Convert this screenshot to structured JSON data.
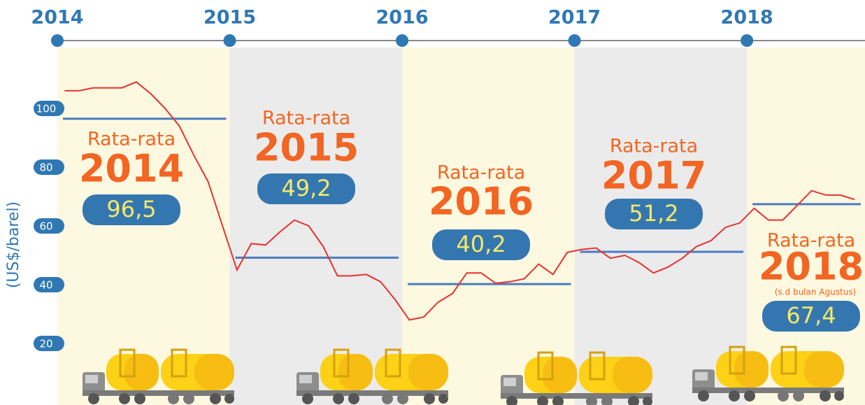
{
  "chart_data": {
    "type": "line",
    "y_label": "(US$/barel)",
    "xlim": [
      2014,
      2018.685
    ],
    "xticks": [
      2014,
      2015,
      2016,
      2017,
      2018
    ],
    "ylim": [
      0,
      120
    ],
    "yticks": [
      20,
      40,
      60,
      80,
      100
    ],
    "grid": false,
    "x": [
      2014.042,
      2014.125,
      2014.208,
      2014.292,
      2014.375,
      2014.458,
      2014.542,
      2014.625,
      2014.708,
      2014.792,
      2014.875,
      2014.958,
      2015.042,
      2015.125,
      2015.208,
      2015.292,
      2015.375,
      2015.458,
      2015.542,
      2015.625,
      2015.708,
      2015.792,
      2015.875,
      2015.958,
      2016.042,
      2016.125,
      2016.208,
      2016.292,
      2016.375,
      2016.458,
      2016.542,
      2016.625,
      2016.708,
      2016.792,
      2016.875,
      2016.958,
      2017.042,
      2017.125,
      2017.208,
      2017.292,
      2017.375,
      2017.458,
      2017.542,
      2017.625,
      2017.708,
      2017.792,
      2017.875,
      2017.958,
      2018.042,
      2018.125,
      2018.208,
      2018.292,
      2018.375,
      2018.458,
      2018.542,
      2018.625
    ],
    "series": [
      {
        "color": "#e8312f",
        "values": [
          106,
          106,
          107,
          107,
          107,
          109,
          105,
          100,
          94,
          84,
          75,
          60,
          45,
          54,
          53.5,
          58,
          62,
          60,
          53,
          43,
          43,
          43.5,
          41,
          35,
          28,
          29,
          34,
          37,
          44,
          44,
          40.5,
          41,
          42,
          47,
          43.5,
          51,
          52,
          52.5,
          49,
          50,
          47.5,
          44,
          46,
          49,
          53,
          55,
          59.5,
          61,
          66,
          62,
          62,
          67,
          72,
          70.5,
          70.5,
          69
        ]
      }
    ],
    "averages": {
      "name": "Rata-rata",
      "color": "#4a7cc0",
      "badge_color": "#3477b0",
      "years": [
        "2014",
        "2015",
        "2016",
        "2017",
        "2018"
      ],
      "values": [
        96.5,
        49.2,
        40.2,
        51.2,
        67.4
      ],
      "value_labels": [
        "96,5",
        "49,2",
        "40,2",
        "51,2",
        "67,4"
      ],
      "note": "(s.d bulan Agustus)"
    }
  }
}
